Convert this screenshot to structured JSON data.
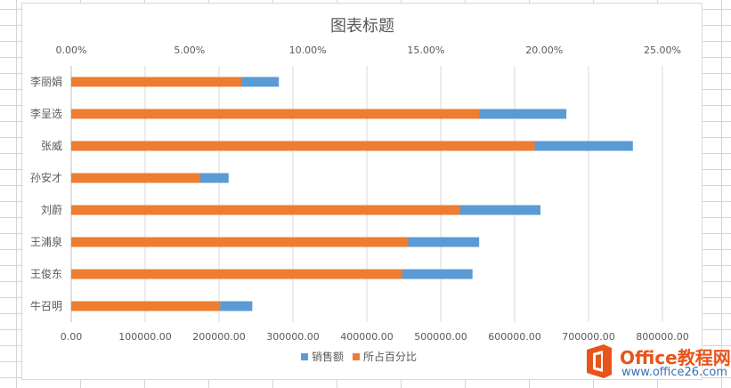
{
  "chart_data": {
    "type": "bar",
    "orientation": "horizontal",
    "stacked": true,
    "title": "图表标题",
    "categories": [
      "李丽娟",
      "李呈选",
      "张威",
      "孙安才",
      "刘蔚",
      "王浦泉",
      "王俊东",
      "牛召明"
    ],
    "series": [
      {
        "name": "所占百分比",
        "axis": "secondary",
        "color": "#ED7D31",
        "values": [
          0.072,
          0.1725,
          0.196,
          0.0545,
          0.1645,
          0.1425,
          0.14,
          0.063
        ]
      },
      {
        "name": "销售额",
        "axis": "primary",
        "color": "#5B9BD5",
        "values": [
          281000,
          670000,
          760000,
          213000,
          635000,
          552000,
          543000,
          245000
        ]
      }
    ],
    "x_primary": {
      "position": "bottom",
      "min": 0,
      "max": 800000,
      "ticks": [
        "0.00",
        "100000.00",
        "200000.00",
        "300000.00",
        "400000.00",
        "500000.00",
        "600000.00",
        "700000.00",
        "800000.00"
      ]
    },
    "x_secondary": {
      "position": "top",
      "min": 0,
      "max": 0.25,
      "ticks": [
        "0.00%",
        "5.00%",
        "10.00%",
        "15.00%",
        "20.00%",
        "25.00%"
      ]
    },
    "grid": true,
    "legend": "bottom"
  },
  "watermark": {
    "brand": "Office教程网",
    "url": "www.office26.com"
  }
}
